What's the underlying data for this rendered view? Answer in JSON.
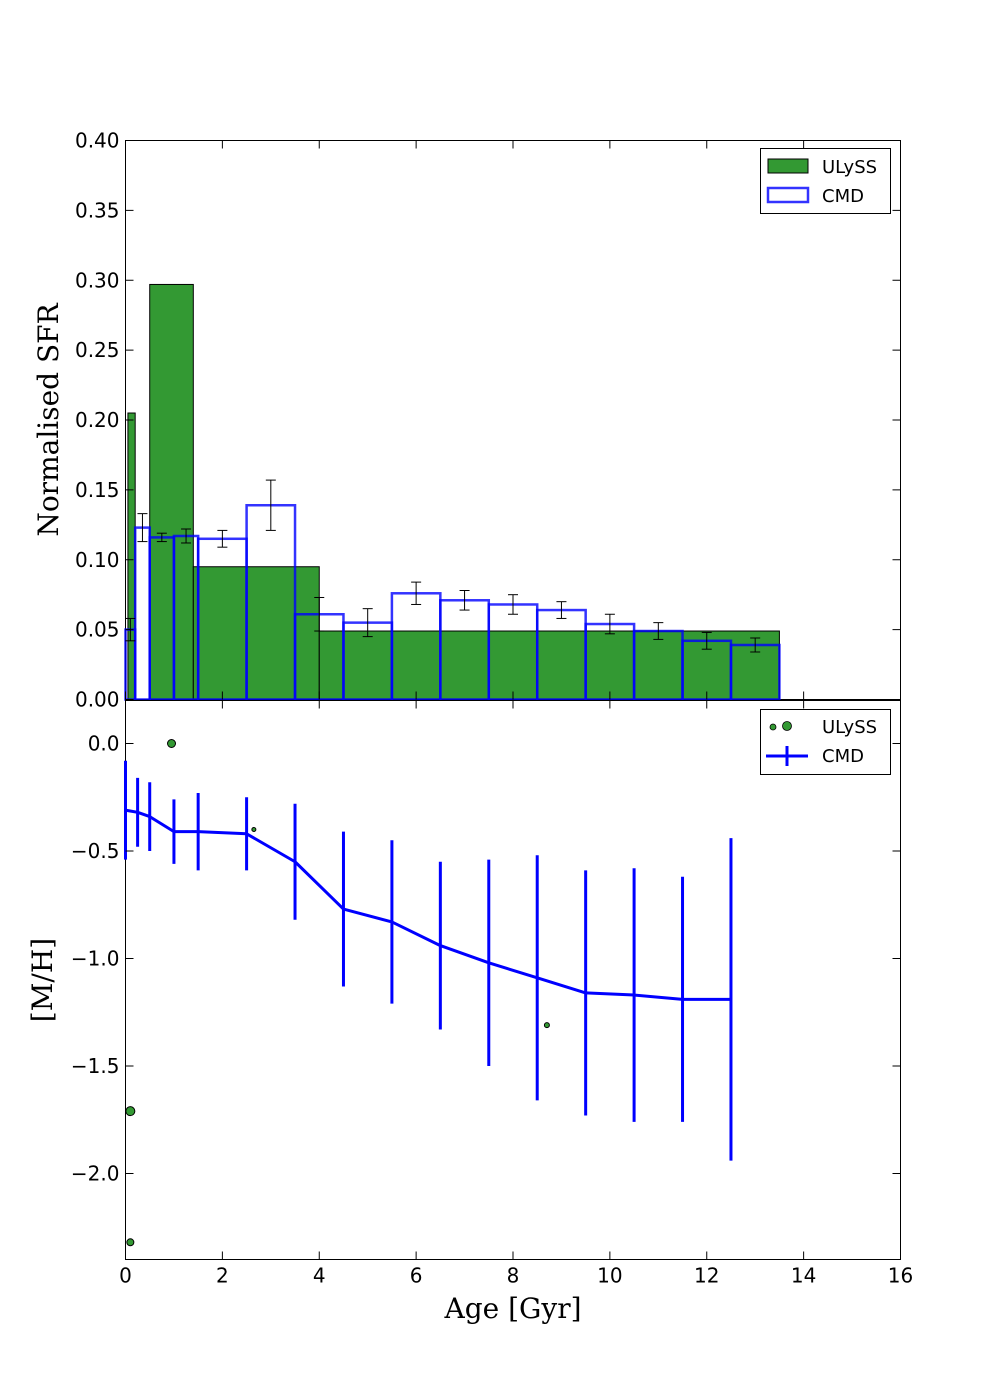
{
  "chart_data": [
    {
      "panel": "top",
      "type": "bar",
      "ylabel": "Normalised SFR",
      "xlabel": "",
      "xlim": [
        0,
        16
      ],
      "ylim": [
        0,
        0.4
      ],
      "yticks": [
        "0.00",
        "0.05",
        "0.10",
        "0.15",
        "0.20",
        "0.25",
        "0.30",
        "0.35",
        "0.40"
      ],
      "grid": false,
      "legend": {
        "placement": "top-right",
        "entries": [
          "ULySS",
          "CMD"
        ]
      },
      "colors": {
        "ulyss": "#339933",
        "cmd": "#0000ff"
      },
      "series": [
        {
          "name": "ULySS",
          "style": "filled-bars",
          "bins": [
            {
              "x0": 0.05,
              "x1": 0.2,
              "value": 0.205
            },
            {
              "x0": 0.5,
              "x1": 1.4,
              "value": 0.297
            },
            {
              "x0": 1.4,
              "x1": 4.0,
              "value": 0.095
            },
            {
              "x0": 4.0,
              "x1": 13.5,
              "value": 0.049
            }
          ]
        },
        {
          "name": "CMD",
          "style": "step-outline-with-errors",
          "bins": [
            {
              "x0": 0.0,
              "x1": 0.2,
              "value": 0.05,
              "err": 0.008
            },
            {
              "x0": 0.2,
              "x1": 0.5,
              "value": 0.123,
              "err": 0.01
            },
            {
              "x0": 0.5,
              "x1": 1.0,
              "value": 0.116,
              "err": 0.003
            },
            {
              "x0": 1.0,
              "x1": 1.5,
              "value": 0.117,
              "err": 0.005
            },
            {
              "x0": 1.5,
              "x1": 2.5,
              "value": 0.115,
              "err": 0.006
            },
            {
              "x0": 2.5,
              "x1": 3.5,
              "value": 0.139,
              "err": 0.018
            },
            {
              "x0": 3.5,
              "x1": 4.5,
              "value": 0.061,
              "err": 0.012
            },
            {
              "x0": 4.5,
              "x1": 5.5,
              "value": 0.055,
              "err": 0.01
            },
            {
              "x0": 5.5,
              "x1": 6.5,
              "value": 0.076,
              "err": 0.008
            },
            {
              "x0": 6.5,
              "x1": 7.5,
              "value": 0.071,
              "err": 0.007
            },
            {
              "x0": 7.5,
              "x1": 8.5,
              "value": 0.068,
              "err": 0.007
            },
            {
              "x0": 8.5,
              "x1": 9.5,
              "value": 0.064,
              "err": 0.006
            },
            {
              "x0": 9.5,
              "x1": 10.5,
              "value": 0.054,
              "err": 0.007
            },
            {
              "x0": 10.5,
              "x1": 11.5,
              "value": 0.049,
              "err": 0.006
            },
            {
              "x0": 11.5,
              "x1": 12.5,
              "value": 0.042,
              "err": 0.006
            },
            {
              "x0": 12.5,
              "x1": 13.5,
              "value": 0.039,
              "err": 0.005
            }
          ]
        }
      ]
    },
    {
      "panel": "bottom",
      "type": "line",
      "ylabel": "[M/H]",
      "xlabel": "Age [Gyr]",
      "xlim": [
        0,
        16
      ],
      "ylim": [
        -2.4,
        0.2
      ],
      "xticks": [
        "0",
        "2",
        "4",
        "6",
        "8",
        "10",
        "12",
        "14",
        "16"
      ],
      "yticks": [
        {
          "value": 0.0,
          "label": "0.0"
        },
        {
          "value": -0.5,
          "label": "−0.5"
        },
        {
          "value": -1.0,
          "label": "−1.0"
        },
        {
          "value": -1.5,
          "label": "−1.5"
        },
        {
          "value": -2.0,
          "label": "−2.0"
        }
      ],
      "grid": false,
      "legend": {
        "placement": "top-right",
        "entries": [
          "ULySS",
          "CMD"
        ]
      },
      "series": [
        {
          "name": "ULySS",
          "style": "scatter-sized",
          "points": [
            {
              "x": 0.95,
              "y": 0.0,
              "size": 4
            },
            {
              "x": 0.1,
              "y": -1.71,
              "size": 4.5
            },
            {
              "x": 0.1,
              "y": -2.32,
              "size": 3.5
            },
            {
              "x": 2.65,
              "y": -0.4,
              "size": 2
            },
            {
              "x": 8.7,
              "y": -1.31,
              "size": 2.5
            }
          ]
        },
        {
          "name": "CMD",
          "style": "line-with-errorbars",
          "points": [
            {
              "x": 0.0,
              "y": -0.31,
              "err": 0.23
            },
            {
              "x": 0.25,
              "y": -0.32,
              "err": 0.16
            },
            {
              "x": 0.5,
              "y": -0.34,
              "err": 0.16
            },
            {
              "x": 1.0,
              "y": -0.41,
              "err": 0.15
            },
            {
              "x": 1.5,
              "y": -0.41,
              "err": 0.18
            },
            {
              "x": 2.5,
              "y": -0.42,
              "err": 0.17
            },
            {
              "x": 3.5,
              "y": -0.55,
              "err": 0.27
            },
            {
              "x": 4.5,
              "y": -0.77,
              "err": 0.36
            },
            {
              "x": 5.5,
              "y": -0.83,
              "err": 0.38
            },
            {
              "x": 6.5,
              "y": -0.94,
              "err": 0.39
            },
            {
              "x": 7.5,
              "y": -1.02,
              "err": 0.48
            },
            {
              "x": 8.5,
              "y": -1.09,
              "err": 0.57
            },
            {
              "x": 9.5,
              "y": -1.16,
              "err": 0.57
            },
            {
              "x": 10.5,
              "y": -1.17,
              "err": 0.59
            },
            {
              "x": 11.5,
              "y": -1.19,
              "err": 0.57
            },
            {
              "x": 12.5,
              "y": -1.19,
              "err": 0.75
            }
          ]
        }
      ]
    }
  ]
}
